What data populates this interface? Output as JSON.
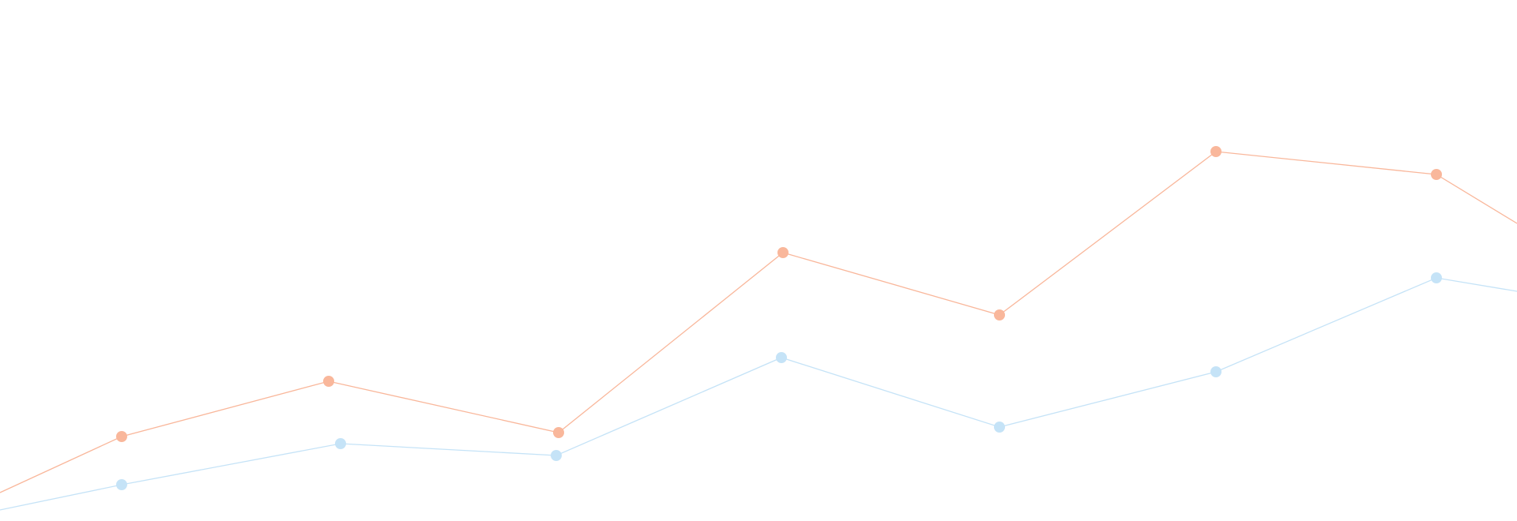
{
  "chart_data": {
    "type": "line",
    "title": "",
    "xlabel": "",
    "ylabel": "",
    "grid": false,
    "legend": "none",
    "axes_visible": false,
    "ylim": [
      0,
      660
    ],
    "series": [
      {
        "color": "#f9b79b",
        "points": [
          {
            "x": 0,
            "y": 36
          },
          {
            "x": 154,
            "y": 107
          },
          {
            "x": 416,
            "y": 177
          },
          {
            "x": 707,
            "y": 112
          },
          {
            "x": 991,
            "y": 340
          },
          {
            "x": 1265,
            "y": 261
          },
          {
            "x": 1539,
            "y": 468
          },
          {
            "x": 1818,
            "y": 439
          },
          {
            "x": 1920,
            "y": 377
          }
        ],
        "markers": [
          1,
          2,
          3,
          4,
          5,
          6,
          7
        ]
      },
      {
        "color": "#c5e3f7",
        "points": [
          {
            "x": 0,
            "y": 14
          },
          {
            "x": 154,
            "y": 46
          },
          {
            "x": 431,
            "y": 98
          },
          {
            "x": 704,
            "y": 83
          },
          {
            "x": 989,
            "y": 207
          },
          {
            "x": 1265,
            "y": 119
          },
          {
            "x": 1539,
            "y": 189
          },
          {
            "x": 1818,
            "y": 308
          },
          {
            "x": 1920,
            "y": 291
          }
        ],
        "markers": [
          1,
          2,
          3,
          4,
          5,
          6,
          7
        ]
      }
    ]
  }
}
